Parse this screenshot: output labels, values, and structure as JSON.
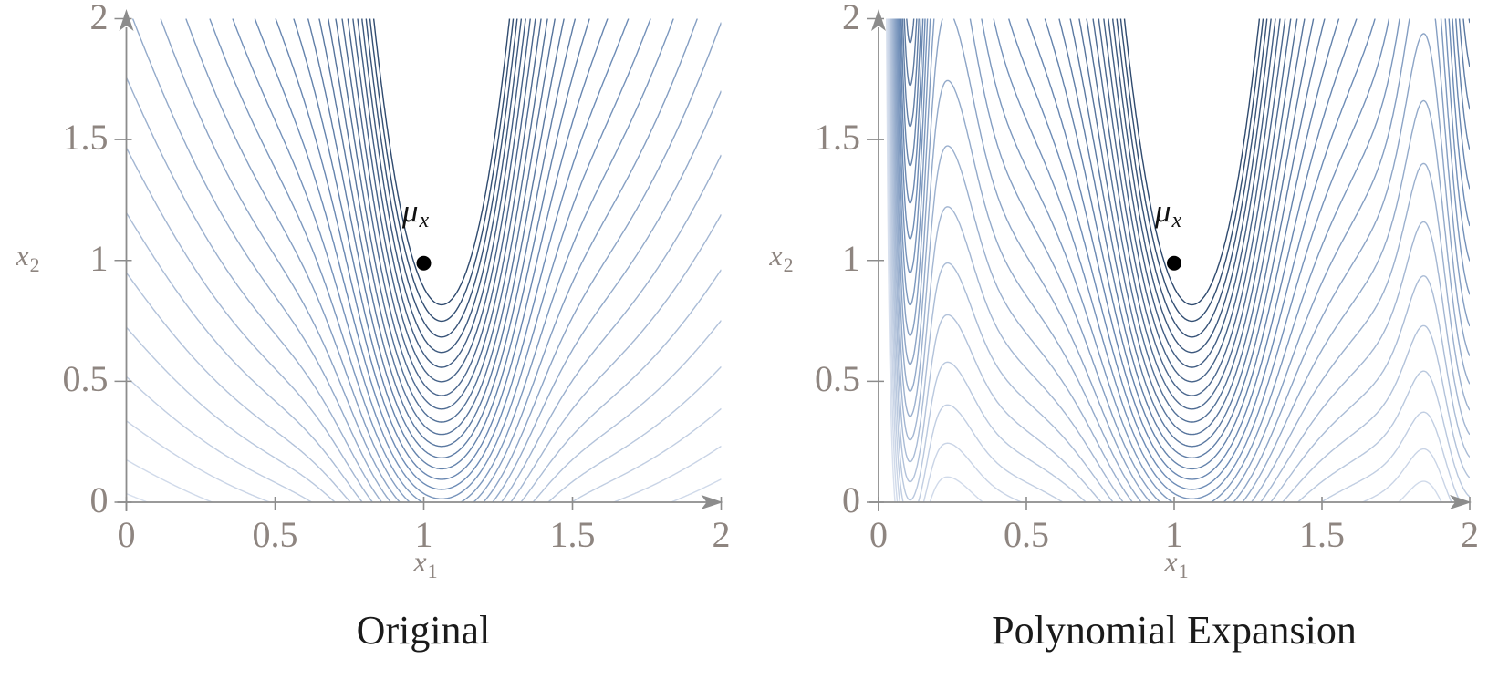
{
  "style": {
    "background": "#ffffff",
    "curve_color_low": "#d8e0ee",
    "curve_color_mid": "#6d8cb6",
    "curve_color_high": "#2f4a6e",
    "axis_color": "#8c8c8c",
    "tick_label_color": "#8e8580",
    "title_color": "#1a1a1a",
    "point_color": "#000000"
  },
  "chart_data": [
    {
      "type": "contour",
      "title": "Original",
      "xlabel": "x1",
      "ylabel": "x2",
      "xlabel_parts": {
        "base": "x",
        "sub": "1"
      },
      "ylabel_parts": {
        "base": "x",
        "sub": "2"
      },
      "xlim": [
        0,
        2
      ],
      "ylim": [
        0,
        2
      ],
      "xtick_values": [
        0,
        0.5,
        1,
        1.5,
        2
      ],
      "xtick_labels": [
        "0",
        "0.5",
        "1",
        "1.5",
        "2"
      ],
      "ytick_values": [
        0,
        0.5,
        1,
        1.5,
        2
      ],
      "ytick_labels": [
        "0",
        "0.5",
        "1",
        "1.5",
        "2"
      ],
      "grid": false,
      "legend": false,
      "annotation": {
        "label": "μx",
        "label_parts": {
          "base": "μ",
          "sub": "x"
        },
        "point": [
          1,
          1
        ]
      },
      "levels": {
        "min": 0.19,
        "max": 1.08,
        "count": 29
      },
      "surface": {
        "formula": "f(x1,x2) = sqrt(x2 + offset) * g(x1); g = c0 + sum a*exp(-(x1-mu)^2/w)",
        "offset": 0.35,
        "g": {
          "c0": 0.22,
          "terms": [
            {
              "a": 0.3,
              "mu": 1.06,
              "w": 0.9
            },
            {
              "a": 0.48,
              "mu": 1.06,
              "w": 0.06
            }
          ]
        },
        "modifiers": []
      }
    },
    {
      "type": "contour",
      "title": "Polynomial Expansion",
      "xlabel": "x1",
      "ylabel": "x2",
      "xlabel_parts": {
        "base": "x",
        "sub": "1"
      },
      "ylabel_parts": {
        "base": "x",
        "sub": "2"
      },
      "xlim": [
        0,
        2
      ],
      "ylim": [
        0,
        2
      ],
      "xtick_values": [
        0,
        0.5,
        1,
        1.5,
        2
      ],
      "xtick_labels": [
        "0",
        "0.5",
        "1",
        "1.5",
        "2"
      ],
      "ytick_values": [
        0,
        0.5,
        1,
        1.5,
        2
      ],
      "ytick_labels": [
        "0",
        "0.5",
        "1",
        "1.5",
        "2"
      ],
      "grid": false,
      "legend": false,
      "annotation": {
        "label": "μx",
        "label_parts": {
          "base": "μ",
          "sub": "x"
        },
        "point": [
          1,
          1
        ]
      },
      "levels": {
        "min": 0.19,
        "max": 1.08,
        "count": 29
      },
      "surface": {
        "formula": "f(x1,x2) = sqrt(x2 + offset) * g(x1) with polynomial-expansion boundary oscillations",
        "offset": 0.35,
        "g": {
          "c0": 0.22,
          "terms": [
            {
              "a": 0.3,
              "mu": 1.06,
              "w": 0.9
            },
            {
              "a": 0.48,
              "mu": 1.06,
              "w": 0.06
            }
          ]
        },
        "modifiers": [
          {
            "a": 0.22,
            "mu": 0.1,
            "w": 0.0036
          },
          {
            "a": -0.29,
            "mu": 0.0,
            "w": 0.0036
          },
          {
            "a": -0.035,
            "mu": 0.26,
            "w": 0.0121
          },
          {
            "a": 0.2,
            "mu": 2.02,
            "w": 0.01
          },
          {
            "a": -0.045,
            "mu": 1.85,
            "w": 0.01
          }
        ]
      }
    }
  ]
}
